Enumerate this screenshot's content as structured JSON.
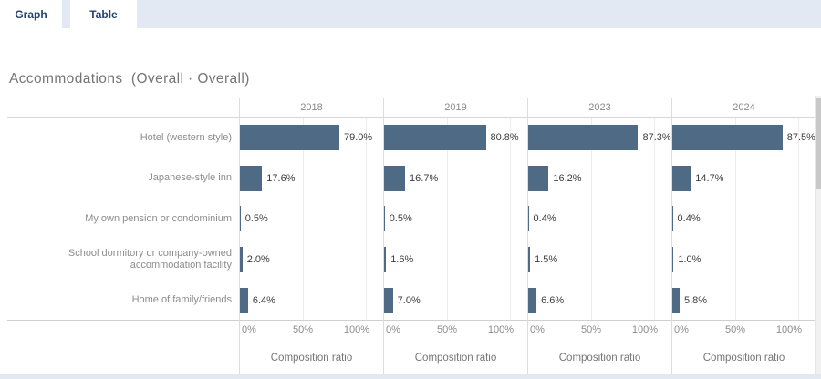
{
  "tabs": [
    {
      "label": "Graph"
    },
    {
      "label": "Table"
    }
  ],
  "title": "Accommodations  (Overall · Overall)",
  "colors": {
    "bar": "#4e6a85",
    "tab_bar_background": "#e3e9f3",
    "tab_text": "#24426e",
    "title_text": "#757575",
    "axis_text": "#8c8c8c",
    "value_text": "#3c3c3c"
  },
  "chart_data": {
    "type": "bar",
    "orientation": "horizontal",
    "title": "Accommodations  (Overall · Overall)",
    "categories": [
      "Hotel (western style)",
      "Japanese-style inn",
      "My own pension or condominium",
      "School dormitory or company-owned accommodation facility",
      "Home of family/friends"
    ],
    "series": [
      {
        "name": "2018",
        "values": [
          79.0,
          17.6,
          0.5,
          2.0,
          6.4
        ]
      },
      {
        "name": "2019",
        "values": [
          80.8,
          16.7,
          0.5,
          1.6,
          7.0
        ]
      },
      {
        "name": "2023",
        "values": [
          87.3,
          16.2,
          0.4,
          1.5,
          6.6
        ]
      },
      {
        "name": "2024",
        "values": [
          87.5,
          14.7,
          0.4,
          1.0,
          5.8
        ]
      }
    ],
    "value_suffix": "%",
    "value_decimals": 1,
    "xlabel": "Composition ratio",
    "x_ticks": [
      "0%",
      "50%",
      "100%"
    ],
    "xlim": [
      0,
      100
    ],
    "grid": true,
    "legend": "none"
  }
}
